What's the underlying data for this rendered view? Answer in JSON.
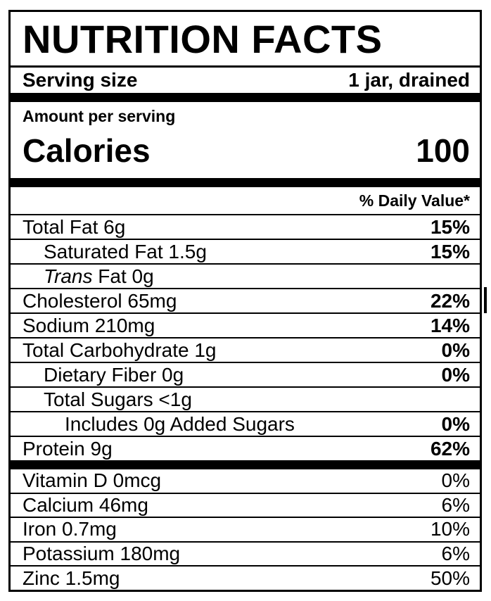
{
  "label": {
    "title": "NUTRITION FACTS",
    "serving": {
      "label": "Serving size",
      "value": "1 jar, drained"
    },
    "amount_per_serving": "Amount per serving",
    "calories": {
      "label": "Calories",
      "value": "100"
    },
    "daily_value_header": "% Daily Value*",
    "nutrients": [
      {
        "label": "Total Fat 6g",
        "italic_prefix": "",
        "dv": "15%",
        "indent": 0
      },
      {
        "label": "Saturated Fat 1.5g",
        "italic_prefix": "",
        "dv": "15%",
        "indent": 1
      },
      {
        "label": "Fat 0g",
        "italic_prefix": "Trans",
        "dv": "",
        "indent": 1
      },
      {
        "label": "Cholesterol 65mg",
        "italic_prefix": "",
        "dv": "22%",
        "indent": 0
      },
      {
        "label": "Sodium 210mg",
        "italic_prefix": "",
        "dv": "14%",
        "indent": 0
      },
      {
        "label": "Total Carbohydrate 1g",
        "italic_prefix": "",
        "dv": "0%",
        "indent": 0
      },
      {
        "label": "Dietary Fiber 0g",
        "italic_prefix": "",
        "dv": "0%",
        "indent": 1
      },
      {
        "label": "Total Sugars <1g",
        "italic_prefix": "",
        "dv": "",
        "indent": 1
      },
      {
        "label": "Includes 0g Added Sugars",
        "italic_prefix": "",
        "dv": "0%",
        "indent": 2
      },
      {
        "label": "Protein 9g",
        "italic_prefix": "",
        "dv": "62%",
        "indent": 0
      }
    ],
    "micronutrients": [
      {
        "label": "Vitamin D 0mcg",
        "dv": "0%"
      },
      {
        "label": "Calcium 46mg",
        "dv": "6%"
      },
      {
        "label": "Iron 0.7mg",
        "dv": "10%"
      },
      {
        "label": "Potassium 180mg",
        "dv": "6%"
      },
      {
        "label": "Zinc 1.5mg",
        "dv": "50%"
      }
    ],
    "colors": {
      "ink": "#000000",
      "background": "#ffffff"
    }
  }
}
